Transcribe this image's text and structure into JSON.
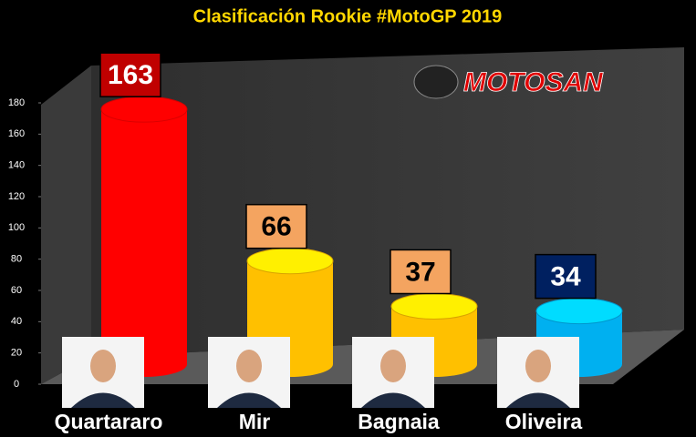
{
  "chart_data": {
    "type": "bar",
    "title": "Clasificación Rookie #MotoGP 2019",
    "logo": "MOTOSAN",
    "categories": [
      "Quartararo",
      "Mir",
      "Bagnaia",
      "Oliveira"
    ],
    "values": [
      163,
      66,
      37,
      34
    ],
    "colors": [
      "#ff0000",
      "#ffc000",
      "#ffc000",
      "#00b0f0"
    ],
    "label_colors": [
      "#c00000",
      "#f4a460",
      "#f4a460",
      "#002060"
    ],
    "ylim": [
      0,
      180
    ],
    "yticks": [
      0,
      20,
      40,
      60,
      80,
      100,
      120,
      140,
      160,
      180
    ]
  }
}
